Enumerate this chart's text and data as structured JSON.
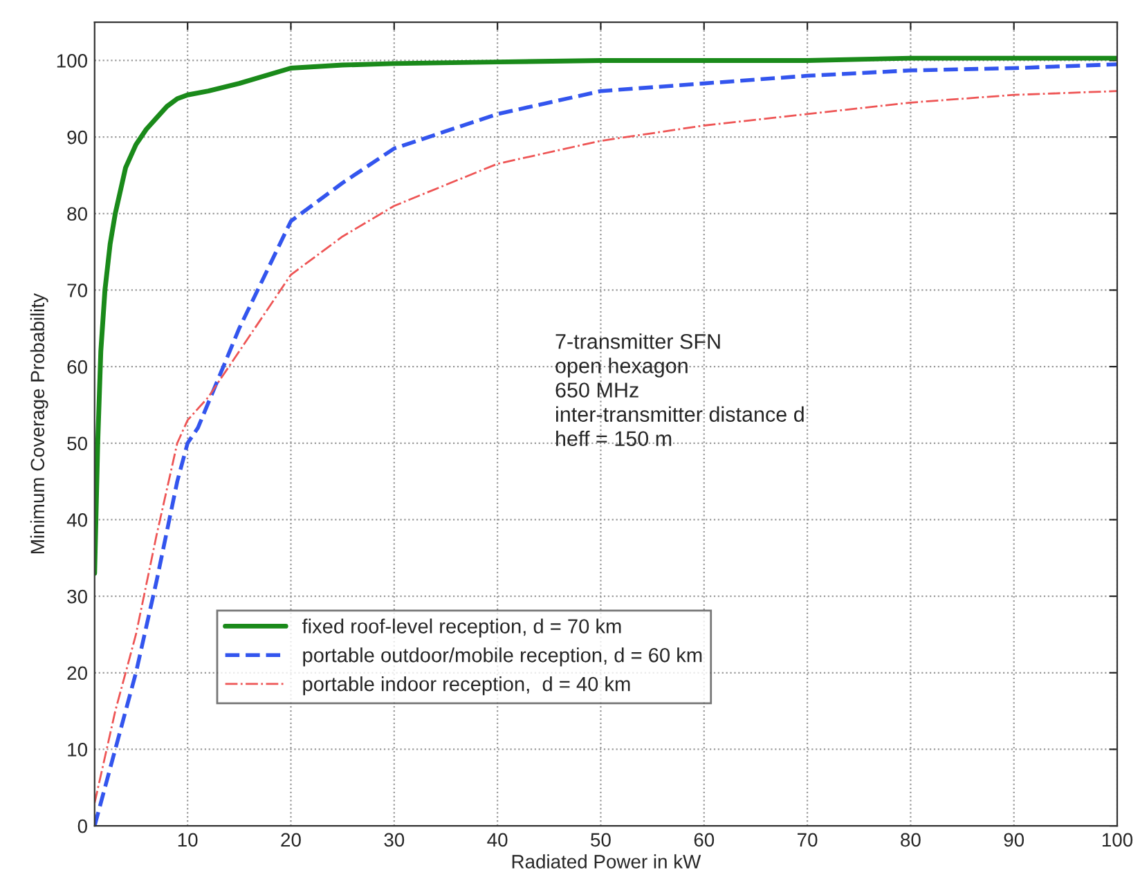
{
  "chart_data": {
    "type": "line",
    "xlabel": "Radiated Power in kW",
    "ylabel": "Minimum Coverage Probability",
    "xlim": [
      1,
      100
    ],
    "xticks": [
      10,
      20,
      30,
      40,
      50,
      60,
      70,
      80,
      90,
      {
        "value": 100,
        "label": "100"
      }
    ],
    "ylim": [
      0,
      105
    ],
    "yticks": [
      0,
      10,
      20,
      30,
      40,
      50,
      60,
      70,
      80,
      90,
      100
    ],
    "grid": true,
    "legend": "bottom left",
    "annotations": [
      "7-transmitter SFN\nopen hexagon\n650 MHz\ninter-transmitter distance d\nheff = 150 m"
    ],
    "series": [
      {
        "name": "fixed roof-level reception, d = 70 km",
        "color": "#1a8a1a",
        "line_style": "solid",
        "x": [
          1,
          1.3,
          1.6,
          2,
          2.5,
          3,
          4,
          5,
          6,
          7,
          8,
          9,
          10,
          12,
          15,
          20,
          25,
          30,
          40,
          50,
          60,
          70,
          80,
          90,
          100
        ],
        "values": [
          33,
          50,
          62,
          70,
          76,
          80,
          86,
          89,
          91,
          92.5,
          94,
          95,
          95.5,
          96,
          97,
          99,
          99.4,
          99.6,
          99.8,
          100,
          100,
          100,
          100.3,
          100.3,
          100.3
        ]
      },
      {
        "name": "portable outdoor/mobile reception, d = 60 km",
        "color": "#3355ee",
        "line_style": "dashed",
        "x": [
          1,
          3,
          5,
          7,
          9,
          10,
          11,
          15,
          20,
          25,
          30,
          40,
          50,
          60,
          70,
          80,
          90,
          100
        ],
        "values": [
          0,
          10,
          20,
          32,
          45,
          50,
          52,
          65,
          79,
          84,
          88.5,
          93,
          96,
          97,
          98,
          98.7,
          99,
          99.5
        ]
      },
      {
        "name": "portable indoor reception,  d = 40 km",
        "color": "#ee5555",
        "line_style": "dashdot",
        "x": [
          1,
          3,
          5,
          7,
          9,
          10,
          12,
          15,
          20,
          25,
          30,
          40,
          50,
          60,
          70,
          80,
          90,
          100
        ],
        "values": [
          3,
          15,
          25,
          38,
          50,
          53,
          56,
          62,
          72,
          77,
          81,
          86.5,
          89.5,
          91.5,
          93,
          94.5,
          95.5,
          96
        ]
      }
    ]
  }
}
